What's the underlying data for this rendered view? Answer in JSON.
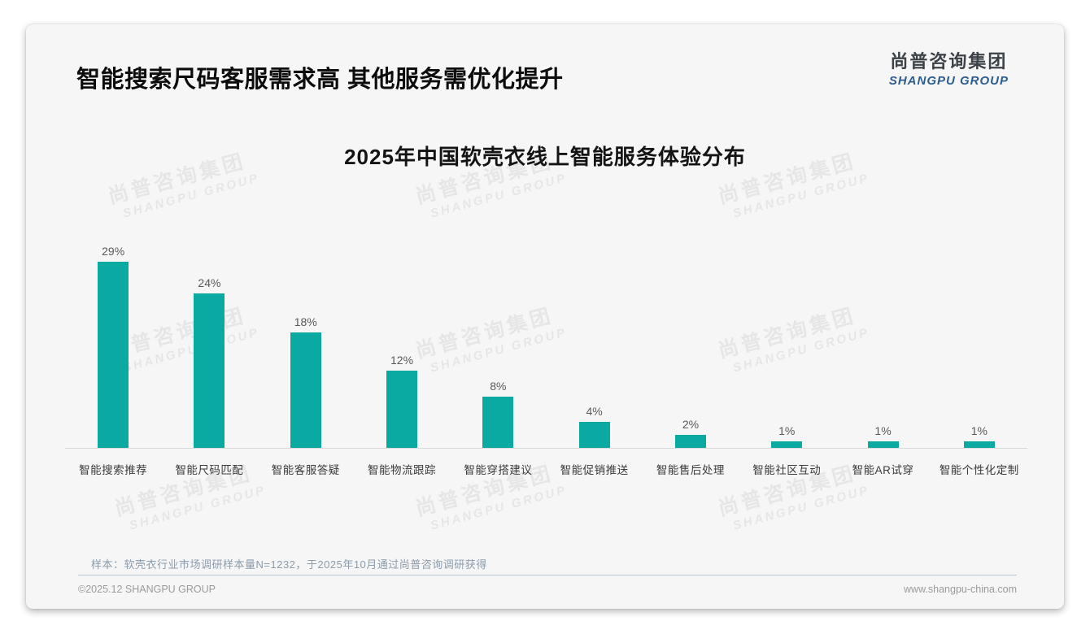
{
  "page": {
    "heading": "智能搜索尺码客服需求高 其他服务需优化提升",
    "logo_cn": "尚普咨询集团",
    "logo_en": "SHANGPU GROUP",
    "watermark_cn": "尚普咨询集团",
    "watermark_en": "SHANGPU GROUP",
    "footnote": "样本：软壳衣行业市场调研样本量N=1232，于2025年10月通过尚普咨询调研获得",
    "copyright": "©2025.12 SHANGPU GROUP",
    "website": "www.shangpu-china.com"
  },
  "chart_data": {
    "type": "bar",
    "title": "2025年中国软壳衣线上智能服务体验分布",
    "categories": [
      "智能搜索推荐",
      "智能尺码匹配",
      "智能客服答疑",
      "智能物流跟踪",
      "智能穿搭建议",
      "智能促销推送",
      "智能售后处理",
      "智能社区互动",
      "智能AR试穿",
      "智能个性化定制"
    ],
    "values": [
      29,
      24,
      18,
      12,
      8,
      4,
      2,
      1,
      1,
      1
    ],
    "unit": "%",
    "xlabel": "",
    "ylabel": "",
    "ylim": [
      0,
      30
    ],
    "bar_color": "#0aa9a1",
    "grid": false,
    "legend_shown": false,
    "value_labels_shown": true
  }
}
